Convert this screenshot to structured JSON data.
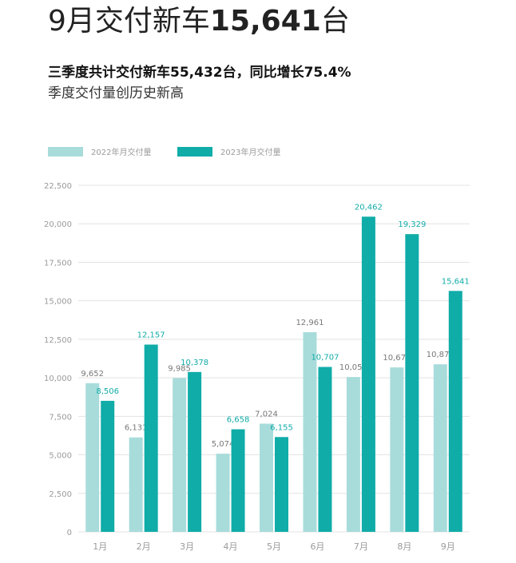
{
  "header": {
    "headline_prefix": "9月交付新车",
    "headline_number": "15,641",
    "headline_suffix": "台",
    "subtitle": "三季度共计交付新车55,432台，同比增长75.4%",
    "note": "季度交付量创历史新高"
  },
  "colors": {
    "series_2022": "#a8dcdb",
    "series_2023": "#10aca8",
    "grid": "#e3e3e3",
    "axis_text": "#9a9a9a",
    "label_2022": "#777777",
    "label_2023": "#10aca8"
  },
  "chart_data": {
    "type": "bar",
    "categories": [
      "1月",
      "2月",
      "3月",
      "4月",
      "5月",
      "6月",
      "7月",
      "8月",
      "9月"
    ],
    "series": [
      {
        "name": "2022年月交付量",
        "values": [
          9652,
          6131,
          9985,
          5074,
          7024,
          12961,
          10052,
          10677,
          10878
        ],
        "labels": [
          "9,652",
          "6,131",
          "9,985",
          "5,074",
          "7,024",
          "12,961",
          "10,052",
          "10,677",
          "10,878"
        ]
      },
      {
        "name": "2023年月交付量",
        "values": [
          8506,
          12157,
          10378,
          6658,
          6155,
          10707,
          20462,
          19329,
          15641
        ],
        "labels": [
          "8,506",
          "12,157",
          "10,378",
          "6,658",
          "6,155",
          "10,707",
          "20,462",
          "19,329",
          "15,641"
        ]
      }
    ],
    "ylim": [
      0,
      22500
    ],
    "yticks": [
      0,
      2500,
      5000,
      7500,
      10000,
      12500,
      15000,
      17500,
      20000,
      22500
    ],
    "ytick_labels": [
      "0",
      "2,500",
      "5,000",
      "7,500",
      "10,000",
      "12,500",
      "15,000",
      "17,500",
      "20,000",
      "22,500"
    ],
    "grid": true,
    "legend_position": "top-left"
  }
}
